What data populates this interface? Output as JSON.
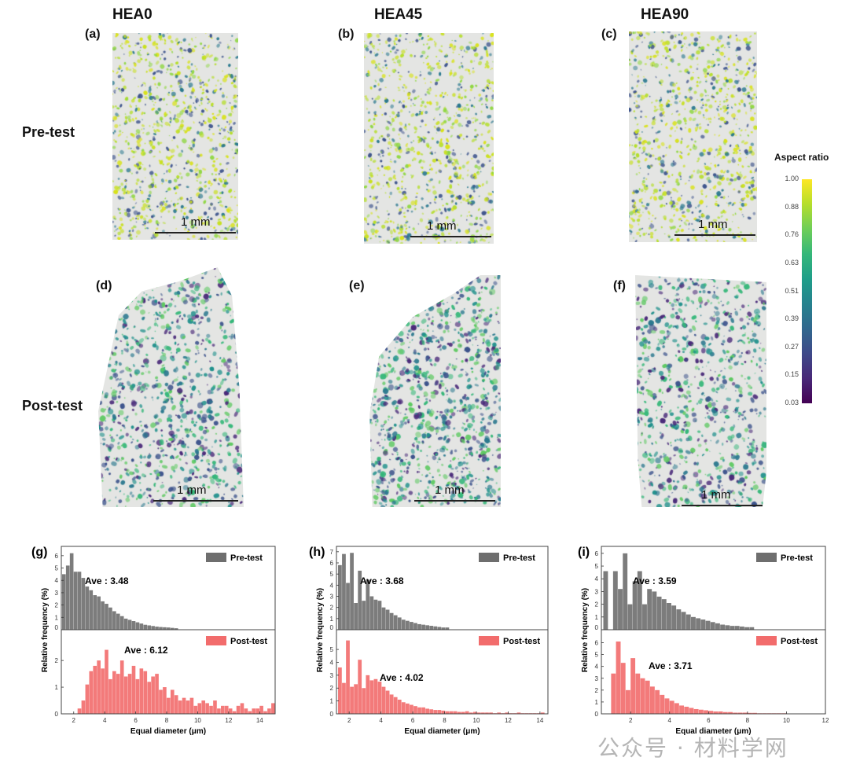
{
  "columns": [
    "HEA0",
    "HEA45",
    "HEA90"
  ],
  "rows": [
    "Pre-test",
    "Post-test"
  ],
  "panels": {
    "a": {
      "label": "(a)",
      "scale": "1 mm"
    },
    "b": {
      "label": "(b)",
      "scale": "1 mm"
    },
    "c": {
      "label": "(c)",
      "scale": "1 mm"
    },
    "d": {
      "label": "(d)",
      "scale": "1 mm"
    },
    "e": {
      "label": "(e)",
      "scale": "1 mm"
    },
    "f": {
      "label": "(f)",
      "scale": "1 mm"
    }
  },
  "colorbar": {
    "title": "Aspect ratio",
    "ticks": [
      "1.00",
      "0.88",
      "0.76",
      "0.63",
      "0.51",
      "0.39",
      "0.27",
      "0.15",
      "0.03"
    ],
    "range": [
      0.03,
      1.0
    ]
  },
  "colors": {
    "pre": "#6e6e6e",
    "post": "#f26c6c"
  },
  "watermark": "公众号 · 材料学网",
  "chart_data": [
    {
      "type": "bar",
      "panel": "(g)",
      "xlabel": "Equal diameter (μm)",
      "ylabel": "Relative frequency (%)",
      "xlim": [
        1.2,
        15
      ],
      "xticks": [
        2,
        4,
        6,
        8,
        10,
        12,
        14
      ],
      "pre": {
        "name": "Pre-test",
        "ave_label": "Ave : 3.48",
        "ylim": [
          0,
          6.5
        ],
        "yticks": [
          0,
          1,
          2,
          3,
          4,
          5,
          6
        ],
        "x0": 1.25,
        "bin": 0.25,
        "values": [
          4.5,
          5.2,
          6.2,
          4.7,
          4.7,
          4.2,
          3.5,
          3.2,
          2.8,
          2.7,
          2.3,
          2.1,
          1.8,
          1.5,
          1.3,
          1.1,
          0.9,
          0.8,
          0.7,
          0.6,
          0.5,
          0.4,
          0.35,
          0.3,
          0.25,
          0.22,
          0.2,
          0.18,
          0.15,
          0.12
        ]
      },
      "post": {
        "name": "Post-test",
        "ave_label": "Ave : 6.12",
        "ylim": [
          0,
          2.8
        ],
        "yticks": [
          0,
          1,
          2
        ],
        "x0": 2.25,
        "bin": 0.25,
        "values": [
          0.2,
          0.5,
          1.1,
          1.6,
          1.8,
          2.0,
          1.7,
          2.4,
          1.3,
          1.6,
          1.5,
          2.0,
          1.4,
          1.5,
          1.8,
          1.3,
          1.7,
          1.6,
          1.2,
          1.4,
          1.5,
          0.9,
          1.0,
          0.6,
          0.9,
          0.7,
          0.5,
          0.6,
          0.5,
          0.6,
          0.3,
          0.4,
          0.5,
          0.4,
          0.3,
          0.5,
          0.2,
          0.3,
          0.3,
          0.2,
          0.1,
          0.3,
          0.4,
          0.2,
          0.1,
          0.2,
          0.2,
          0.3,
          0.1,
          0.2,
          0.4
        ]
      }
    },
    {
      "type": "bar",
      "panel": "(h)",
      "xlabel": "Equal diameter (μm)",
      "ylabel": "Relative frequency (%)",
      "xlim": [
        1.2,
        14.5
      ],
      "xticks": [
        2,
        4,
        6,
        8,
        10,
        12,
        14
      ],
      "pre": {
        "name": "Pre-test",
        "ave_label": "Ave : 3.68",
        "ylim": [
          0,
          7.2
        ],
        "yticks": [
          0,
          1,
          2,
          3,
          4,
          5,
          6,
          7
        ],
        "x0": 1.3,
        "bin": 0.25,
        "values": [
          5.8,
          6.8,
          4.2,
          6.9,
          2.4,
          5.3,
          2.6,
          4.5,
          3.0,
          2.7,
          2.6,
          2.0,
          1.8,
          1.5,
          1.3,
          1.1,
          0.9,
          0.8,
          0.7,
          0.6,
          0.5,
          0.45,
          0.4,
          0.35,
          0.3,
          0.25,
          0.2,
          0.2
        ]
      },
      "post": {
        "name": "Post-test",
        "ave_label": "Ave : 4.02",
        "ylim": [
          0,
          5.8
        ],
        "yticks": [
          0,
          1,
          2,
          3,
          4,
          5
        ],
        "x0": 1.3,
        "bin": 0.25,
        "values": [
          3.6,
          2.4,
          5.7,
          2.1,
          2.3,
          4.2,
          2.0,
          3.0,
          2.6,
          2.7,
          2.5,
          2.1,
          1.8,
          1.5,
          1.3,
          1.1,
          0.9,
          0.8,
          0.7,
          0.6,
          0.5,
          0.5,
          0.4,
          0.35,
          0.3,
          0.3,
          0.25,
          0.2,
          0.2,
          0.2,
          0.15,
          0.15,
          0.2,
          0.1,
          0.15,
          0.1,
          0.1,
          0.1,
          0.1,
          0.05,
          0.1,
          0.05,
          0.1,
          0.05,
          0.05,
          0.1,
          0.05,
          0.05,
          0.05,
          0.05,
          0.05,
          0.1
        ]
      }
    },
    {
      "type": "bar",
      "panel": "(i)",
      "xlabel": "Equal diameter (μm)",
      "ylabel": "Relative frequency (%)",
      "xlim": [
        0.5,
        12
      ],
      "xticks": [
        2,
        4,
        6,
        8,
        10,
        12
      ],
      "pre": {
        "name": "Pre-test",
        "ave_label": "Ave : 3.59",
        "ylim": [
          0,
          6.3
        ],
        "yticks": [
          0,
          1,
          2,
          3,
          4,
          5,
          6
        ],
        "x0": 0.6,
        "bin": 0.25,
        "values": [
          4.6,
          0,
          4.6,
          3.2,
          6.0,
          2.0,
          3.8,
          4.6,
          2.0,
          3.2,
          3.0,
          2.6,
          2.4,
          2.1,
          1.9,
          1.6,
          1.4,
          1.2,
          1.0,
          0.9,
          0.8,
          0.7,
          0.6,
          0.5,
          0.4,
          0.35,
          0.3,
          0.3,
          0.25,
          0.2,
          0.2
        ]
      },
      "post": {
        "name": "Post-test",
        "ave_label": "Ave : 3.71",
        "ylim": [
          0,
          6.3
        ],
        "yticks": [
          0,
          1,
          2,
          3,
          4,
          5,
          6
        ],
        "x0": 1.0,
        "bin": 0.25,
        "values": [
          3.4,
          6.1,
          4.3,
          2.0,
          4.7,
          3.4,
          3.0,
          2.8,
          2.3,
          2.0,
          1.6,
          1.3,
          1.1,
          0.9,
          0.7,
          0.6,
          0.5,
          0.4,
          0.35,
          0.3,
          0.25,
          0.2,
          0.2,
          0.15,
          0.15,
          0.1,
          0.1,
          0.1,
          0.08,
          0.08,
          0.05,
          0.05,
          0.05,
          0.05,
          0.05,
          0.05,
          0.03,
          0.03,
          0.03,
          0.03,
          0.03,
          0.03,
          0.03,
          0.03
        ]
      }
    }
  ]
}
